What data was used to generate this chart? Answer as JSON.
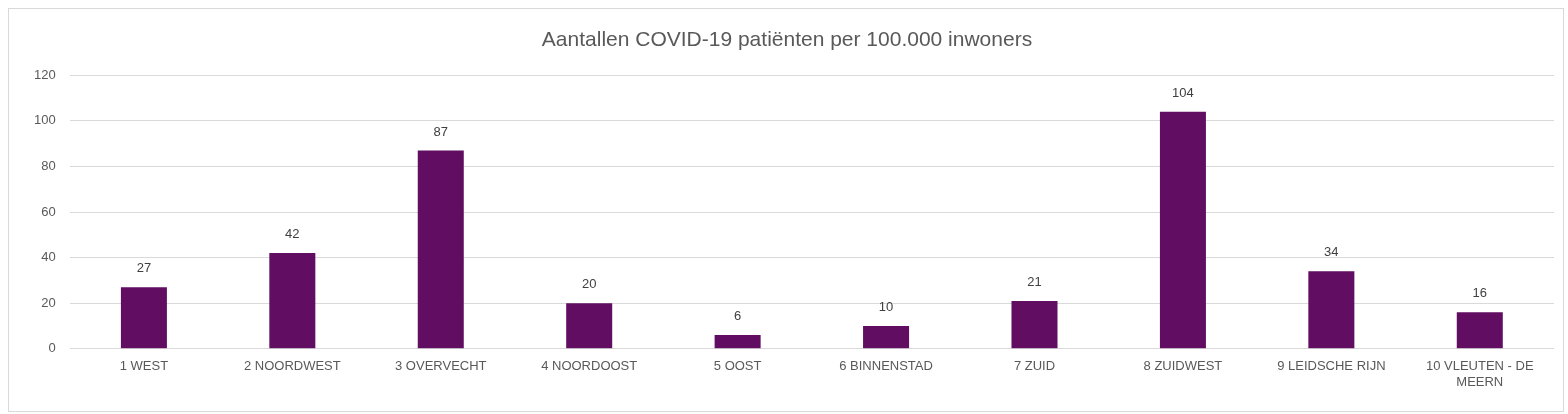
{
  "chart_data": {
    "type": "bar",
    "title": "Aantallen COVID-19 patiënten per 100.000 inwoners",
    "categories": [
      "1 WEST",
      "2 NOORDWEST",
      "3 OVERVECHT",
      "4 NOORDOOST",
      "5 OOST",
      "6 BINNENSTAD",
      "7 ZUID",
      "8 ZUIDWEST",
      "9 LEIDSCHE RIJN",
      "10 VLEUTEN - DE MEERN"
    ],
    "values": [
      27,
      42,
      87,
      20,
      6,
      10,
      21,
      104,
      34,
      16
    ],
    "color": "#600d62",
    "ylim": [
      0,
      120
    ],
    "yticks": [
      0,
      20,
      40,
      60,
      80,
      100,
      120
    ],
    "grid": "y",
    "data_labels": true,
    "legend": false
  }
}
